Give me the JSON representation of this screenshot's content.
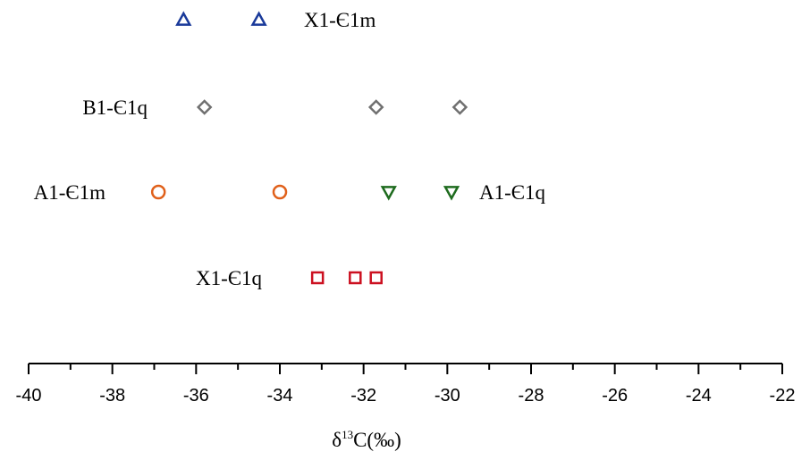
{
  "chart_data": {
    "type": "strip",
    "x_label": [
      "δ",
      "13",
      "C(‰)"
    ],
    "xlim": [
      -40,
      -22
    ],
    "xticks": [
      -40,
      -38,
      -36,
      -34,
      -32,
      -30,
      -28,
      -26,
      -24,
      -22
    ],
    "xminorticks": [
      -39,
      -37,
      -35,
      -33,
      -31,
      -29,
      -27,
      -25,
      -23
    ],
    "series": [
      {
        "name": "X1-Є1m",
        "color": "#1a3a9a",
        "marker": "triangle-up",
        "values": [
          -36.3,
          -34.5
        ]
      },
      {
        "name": "B1-Є1q",
        "color": "#707070",
        "marker": "diamond",
        "values": [
          -35.8,
          -31.7,
          -29.7
        ]
      },
      {
        "name": "A1-Є1m",
        "color": "#e0601a",
        "marker": "circle",
        "values": [
          -36.9,
          -34.0
        ]
      },
      {
        "name": "A1-Є1q",
        "color": "#1e6b1e",
        "marker": "triangle-down",
        "values": [
          -31.4,
          -29.9
        ]
      },
      {
        "name": "X1-Є1q",
        "color": "#cc1020",
        "marker": "square",
        "values": [
          -33.1,
          -32.2,
          -31.7
        ]
      }
    ]
  }
}
